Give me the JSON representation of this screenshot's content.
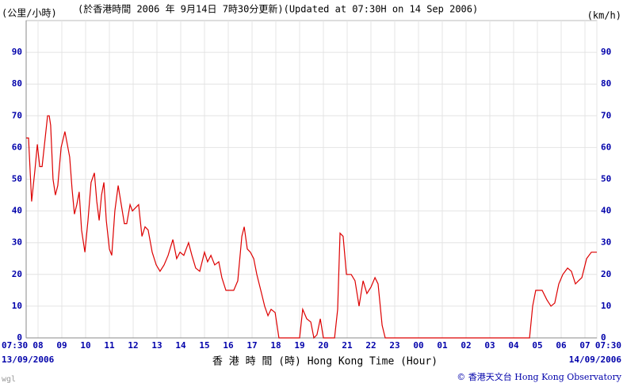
{
  "chart_data": {
    "type": "line",
    "title": "(於香港時間 2006 年 9月14日 7時30分更新)(Updated at 07:30H on 14 Sep 2006)",
    "y_label": "(公里/小時)",
    "y2_label": "(km/h)",
    "x_label": "香 港 時 間 (時) Hong Kong Time (Hour)",
    "start_date": "13/09/2006",
    "end_date": "14/09/2006",
    "credit": "© 香港天文台 Hong Kong Observatory",
    "signature": "wgl",
    "color": "#dd0000",
    "grid": true,
    "xlim": [
      7.5,
      31.5
    ],
    "ylim": [
      0,
      100
    ],
    "yticks": [
      0,
      10,
      20,
      30,
      40,
      50,
      60,
      70,
      80,
      90
    ],
    "xticks": [
      {
        "value": 7.5,
        "label": "07:30"
      },
      {
        "value": 8,
        "label": "08"
      },
      {
        "value": 9,
        "label": "09"
      },
      10,
      11,
      12,
      13,
      14,
      15,
      16,
      17,
      18,
      19,
      20,
      21,
      22,
      23,
      {
        "value": 24,
        "label": "00"
      },
      {
        "value": 25,
        "label": "01"
      },
      {
        "value": 26,
        "label": "02"
      },
      {
        "value": 27,
        "label": "03"
      },
      {
        "value": 28,
        "label": "04"
      },
      {
        "value": 29,
        "label": "05"
      },
      {
        "value": 30,
        "label": "06"
      },
      {
        "value": 31,
        "label": "07"
      },
      {
        "value": 31.5,
        "label": "07:30"
      }
    ],
    "x": [
      7.5,
      7.6,
      7.73,
      7.87,
      7.97,
      8.07,
      8.17,
      8.3,
      8.4,
      8.47,
      8.53,
      8.63,
      8.73,
      8.83,
      8.97,
      9.13,
      9.33,
      9.43,
      9.53,
      9.63,
      9.73,
      9.83,
      9.97,
      10.1,
      10.23,
      10.37,
      10.47,
      10.57,
      10.67,
      10.77,
      10.87,
      11.0,
      11.1,
      11.23,
      11.37,
      11.5,
      11.63,
      11.73,
      11.87,
      11.97,
      12.1,
      12.23,
      12.37,
      12.5,
      12.63,
      12.8,
      12.97,
      13.13,
      13.3,
      13.47,
      13.67,
      13.83,
      13.97,
      14.13,
      14.33,
      14.47,
      14.63,
      14.8,
      15.0,
      15.13,
      15.27,
      15.43,
      15.6,
      15.73,
      15.9,
      16.07,
      16.23,
      16.4,
      16.57,
      16.67,
      16.8,
      16.93,
      17.07,
      17.2,
      17.4,
      17.53,
      17.67,
      17.8,
      17.97,
      18.13,
      19.0,
      19.13,
      19.3,
      19.47,
      19.6,
      19.73,
      19.87,
      20.0,
      20.47,
      20.6,
      20.7,
      20.83,
      20.97,
      21.17,
      21.33,
      21.5,
      21.67,
      21.83,
      22.0,
      22.17,
      22.3,
      22.47,
      22.6,
      28.67,
      28.8,
      28.93,
      29.07,
      29.2,
      29.4,
      29.57,
      29.73,
      29.9,
      30.07,
      30.27,
      30.43,
      30.6,
      30.73,
      30.87,
      31.07,
      31.27,
      31.5
    ],
    "values": [
      63,
      63,
      43,
      53,
      61,
      54,
      54,
      63,
      70,
      70,
      67,
      50,
      45,
      48,
      60,
      65,
      57,
      47,
      39,
      42,
      46,
      34,
      27,
      37,
      49,
      52,
      43,
      37,
      45,
      49,
      37,
      28,
      26,
      40,
      48,
      42,
      36,
      36,
      42,
      40,
      41,
      42,
      32,
      35,
      34,
      27,
      23,
      21,
      23,
      26,
      31,
      25,
      27,
      26,
      30,
      26,
      22,
      21,
      27,
      24,
      26,
      23,
      24,
      19,
      15,
      15,
      15,
      18,
      32,
      35,
      28,
      27,
      25,
      20,
      14,
      10,
      7,
      9,
      8,
      0,
      0,
      9,
      6,
      5,
      0,
      1,
      6,
      0,
      0,
      9,
      33,
      32,
      20,
      20,
      18,
      10,
      18,
      14,
      16,
      19,
      17,
      4,
      0,
      0,
      10,
      15,
      15,
      15,
      12,
      10,
      11,
      17,
      20,
      22,
      21,
      17,
      18,
      19,
      25,
      27,
      27
    ]
  }
}
